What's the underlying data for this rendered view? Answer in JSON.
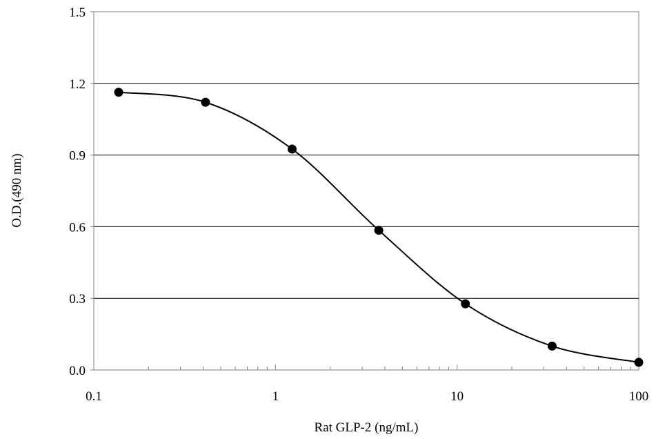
{
  "chart_data": {
    "type": "scatter",
    "title": "",
    "xlabel": "Rat GLP-2 (ng/mL)",
    "ylabel": "O.D.(490 nm)",
    "x_scale": "log",
    "xlim": [
      0.1,
      100
    ],
    "ylim": [
      0.0,
      1.5
    ],
    "x_ticks": [
      "0.1",
      "1",
      "10",
      "100"
    ],
    "y_ticks": [
      "0.0",
      "0.3",
      "0.6",
      "0.9",
      "1.2",
      "1.5"
    ],
    "grid": "horizontal",
    "series": [
      {
        "x": [
          0.137,
          0.412,
          1.235,
          3.704,
          11.11,
          33.33,
          100
        ],
        "y": [
          1.163,
          1.121,
          0.925,
          0.585,
          0.277,
          0.1,
          0.032
        ],
        "marker": "filled-circle",
        "line": "smooth"
      }
    ],
    "colors": {
      "marker": "#000000",
      "line": "#000000",
      "grid": "#000000",
      "frame": "#808080"
    }
  }
}
